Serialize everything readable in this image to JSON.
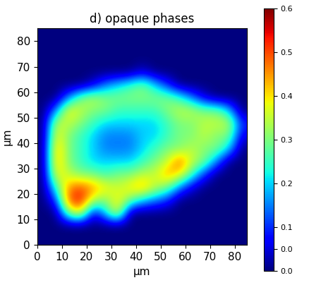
{
  "chart_data": {
    "type": "heatmap",
    "title": "d) opaque phases",
    "xlabel": "μm",
    "ylabel": "μm",
    "color": "jet",
    "xlim": [
      0,
      85
    ],
    "ylim": [
      0,
      85
    ],
    "xticks": [
      0,
      10,
      20,
      30,
      40,
      50,
      60,
      70,
      80
    ],
    "yticks": [
      0,
      10,
      20,
      30,
      40,
      50,
      60,
      70,
      80
    ],
    "cells": [
      [
        0,
        0,
        0,
        0,
        0,
        0,
        0,
        0,
        0,
        0,
        0,
        0,
        0,
        0,
        0,
        0,
        0
      ],
      [
        0,
        0,
        0,
        0,
        0,
        0,
        0,
        0,
        0,
        0,
        0,
        0,
        0,
        0,
        0,
        0,
        0
      ],
      [
        0,
        0,
        0,
        0,
        0,
        0,
        0,
        0,
        0,
        0,
        0,
        0,
        0,
        0,
        0,
        0,
        0
      ],
      [
        0,
        0,
        0,
        0,
        0,
        0,
        0,
        0,
        0.05,
        0,
        0,
        0,
        0,
        0,
        0,
        0,
        0
      ],
      [
        0,
        0,
        0,
        0,
        0.05,
        0.15,
        0.2,
        0.25,
        0.3,
        0.2,
        0.1,
        0,
        0,
        0,
        0,
        0,
        0
      ],
      [
        0,
        0,
        0.15,
        0.3,
        0.35,
        0.3,
        0.3,
        0.3,
        0.3,
        0.3,
        0.3,
        0.25,
        0.15,
        0.05,
        0,
        0,
        0
      ],
      [
        0,
        0.15,
        0.4,
        0.35,
        0.3,
        0.3,
        0.25,
        0.25,
        0.25,
        0.25,
        0.3,
        0.35,
        0.35,
        0.3,
        0.3,
        0.2,
        0
      ],
      [
        0,
        0.35,
        0.35,
        0.3,
        0.25,
        0.2,
        0.2,
        0.2,
        0.2,
        0.2,
        0.25,
        0.3,
        0.3,
        0.35,
        0.35,
        0.35,
        0.1
      ],
      [
        0,
        0.4,
        0.3,
        0.25,
        0.2,
        0.15,
        0.15,
        0.15,
        0.2,
        0.2,
        0.25,
        0.3,
        0.3,
        0.35,
        0.3,
        0.3,
        0.05
      ],
      [
        0,
        0.45,
        0.3,
        0.25,
        0.2,
        0.15,
        0.15,
        0.15,
        0.2,
        0.25,
        0.3,
        0.3,
        0.35,
        0.3,
        0.3,
        0.2,
        0
      ],
      [
        0,
        0.45,
        0.3,
        0.25,
        0.2,
        0.2,
        0.2,
        0.2,
        0.25,
        0.3,
        0.35,
        0.5,
        0.35,
        0.3,
        0.15,
        0,
        0
      ],
      [
        0,
        0.4,
        0.35,
        0.3,
        0.3,
        0.25,
        0.3,
        0.3,
        0.35,
        0.35,
        0.45,
        0.4,
        0.25,
        0.1,
        0,
        0,
        0
      ],
      [
        0,
        0.25,
        0.45,
        0.5,
        0.45,
        0.4,
        0.35,
        0.4,
        0.45,
        0.35,
        0.3,
        0.15,
        0.05,
        0,
        0,
        0,
        0
      ],
      [
        0,
        0.1,
        0.5,
        0.55,
        0.35,
        0.3,
        0.4,
        0.3,
        0.2,
        0.15,
        0.1,
        0,
        0,
        0,
        0,
        0,
        0
      ],
      [
        0,
        0,
        0.3,
        0.4,
        0.05,
        0.2,
        0.4,
        0,
        0,
        0,
        0,
        0,
        0,
        0,
        0,
        0,
        0
      ],
      [
        0,
        0,
        0,
        0,
        0,
        0,
        0,
        0,
        0,
        0,
        0,
        0,
        0,
        0,
        0,
        0,
        0
      ],
      [
        0,
        0,
        0,
        0,
        0,
        0,
        0,
        0,
        0,
        0,
        0,
        0,
        0,
        0,
        0,
        0,
        0
      ]
    ],
    "crange": [
      0,
      0.6
    ],
    "cticks": [
      {
        "value": 0,
        "label": "0.0"
      },
      {
        "value": 0.05,
        "label": "0.0"
      },
      0.1,
      0.2,
      0.3,
      0.4,
      0.5,
      0.6
    ]
  }
}
